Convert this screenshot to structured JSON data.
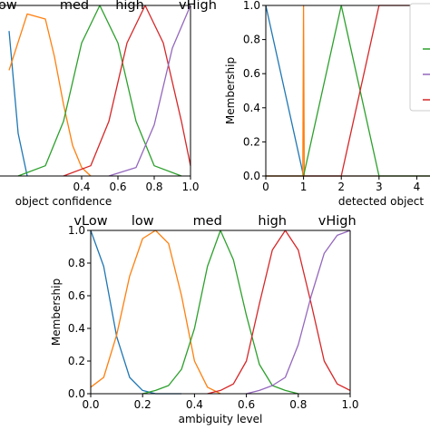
{
  "chart_data": [
    {
      "type": "line",
      "xlabel": "object confidence",
      "ylabel": "",
      "xlim": [
        0,
        1.0
      ],
      "ylim": [
        0,
        1.0
      ],
      "xticks": [
        "0.4",
        "0.6",
        "0.8",
        "1.0"
      ],
      "yticks": [],
      "grid": false,
      "series": [
        {
          "name": "ow",
          "color": "#1f77b4",
          "x": [
            0,
            0.05,
            0.1
          ],
          "y": [
            0.85,
            0.25,
            0.0
          ]
        },
        {
          "name": "med",
          "color": "#ff7f0e",
          "x": [
            0,
            0.1,
            0.2,
            0.25,
            0.3,
            0.35,
            0.4,
            0.45
          ],
          "y": [
            0.62,
            0.95,
            0.92,
            0.7,
            0.42,
            0.18,
            0.05,
            0.0
          ]
        },
        {
          "name": "",
          "color": "#2ca02c",
          "x": [
            0.05,
            0.2,
            0.3,
            0.4,
            0.5,
            0.6,
            0.7,
            0.8,
            0.95
          ],
          "y": [
            0.0,
            0.06,
            0.32,
            0.78,
            1.0,
            0.78,
            0.32,
            0.06,
            0.0
          ]
        },
        {
          "name": "high",
          "color": "#d62728",
          "x": [
            0.3,
            0.45,
            0.55,
            0.65,
            0.75,
            0.85,
            0.95,
            1.0
          ],
          "y": [
            0.0,
            0.06,
            0.32,
            0.78,
            1.0,
            0.78,
            0.32,
            0.06
          ]
        },
        {
          "name": "vHigh",
          "color": "#9467bd",
          "x": [
            0.55,
            0.7,
            0.8,
            0.9,
            1.0
          ],
          "y": [
            0.0,
            0.05,
            0.3,
            0.75,
            1.0
          ]
        }
      ],
      "labels": [
        "ow",
        "med",
        "high",
        "vHigh"
      ]
    },
    {
      "type": "line",
      "xlabel": "detected object",
      "ylabel": "Membership",
      "xlim": [
        0,
        5
      ],
      "ylim": [
        0,
        1.0
      ],
      "xticks": [
        "0",
        "1",
        "2",
        "3",
        "4"
      ],
      "yticks": [
        "0.0",
        "0.2",
        "0.4",
        "0.6",
        "0.8",
        "1.0"
      ],
      "grid": false,
      "series": [
        {
          "name": "",
          "color": "#1f77b4",
          "x": [
            0,
            1,
            5
          ],
          "y": [
            1.0,
            0.0,
            0.0
          ]
        },
        {
          "name": "",
          "color": "#ff7f0e",
          "x": [
            0,
            0.98,
            1.0,
            1.02,
            5
          ],
          "y": [
            0.0,
            0.0,
            1.0,
            0.0,
            0.0
          ]
        },
        {
          "name": "",
          "color": "#2ca02c",
          "x": [
            0,
            1,
            2,
            3,
            5
          ],
          "y": [
            0.0,
            0.0,
            1.0,
            0.0,
            0.0
          ]
        },
        {
          "name": "",
          "color": "#d62728",
          "x": [
            0,
            2,
            3,
            5
          ],
          "y": [
            0.0,
            0.0,
            1.0,
            1.0
          ]
        }
      ]
    },
    {
      "type": "line",
      "xlabel": "ambiguity level",
      "ylabel": "Membership",
      "xlim": [
        0,
        1.0
      ],
      "ylim": [
        0,
        1.0
      ],
      "xticks": [
        "0.0",
        "0.2",
        "0.4",
        "0.6",
        "0.8",
        "1.0"
      ],
      "yticks": [
        "0.0",
        "0.2",
        "0.4",
        "0.6",
        "0.8",
        "1.0"
      ],
      "grid": false,
      "series": [
        {
          "name": "vLow",
          "color": "#1f77b4",
          "x": [
            0,
            0.05,
            0.1,
            0.15,
            0.2,
            0.25,
            0.3,
            0.35
          ],
          "y": [
            1.0,
            0.78,
            0.35,
            0.1,
            0.02,
            0.0,
            0.0,
            0.0
          ]
        },
        {
          "name": "low",
          "color": "#ff7f0e",
          "x": [
            0,
            0.05,
            0.1,
            0.15,
            0.2,
            0.25,
            0.3,
            0.35,
            0.4,
            0.45,
            0.5
          ],
          "y": [
            0.04,
            0.1,
            0.36,
            0.72,
            0.95,
            1.0,
            0.92,
            0.6,
            0.2,
            0.04,
            0.0
          ]
        },
        {
          "name": "med",
          "color": "#2ca02c",
          "x": [
            0.2,
            0.25,
            0.3,
            0.35,
            0.4,
            0.45,
            0.5,
            0.55,
            0.6,
            0.65,
            0.7,
            0.75,
            0.8
          ],
          "y": [
            0.0,
            0.02,
            0.05,
            0.15,
            0.4,
            0.78,
            1.0,
            0.82,
            0.48,
            0.18,
            0.05,
            0.02,
            0.0
          ]
        },
        {
          "name": "high",
          "color": "#d62728",
          "x": [
            0.45,
            0.5,
            0.55,
            0.6,
            0.65,
            0.7,
            0.75,
            0.8,
            0.85,
            0.9,
            0.95,
            1.0
          ],
          "y": [
            0.0,
            0.02,
            0.06,
            0.2,
            0.55,
            0.88,
            1.0,
            0.88,
            0.55,
            0.2,
            0.06,
            0.02
          ]
        },
        {
          "name": "vHigh",
          "color": "#9467bd",
          "x": [
            0.6,
            0.65,
            0.7,
            0.75,
            0.8,
            0.85,
            0.9,
            0.95,
            1.0
          ],
          "y": [
            0.0,
            0.02,
            0.05,
            0.1,
            0.3,
            0.6,
            0.86,
            0.97,
            1.0
          ]
        }
      ],
      "labels": [
        "vLow",
        "low",
        "med",
        "high",
        "vHigh"
      ]
    }
  ]
}
